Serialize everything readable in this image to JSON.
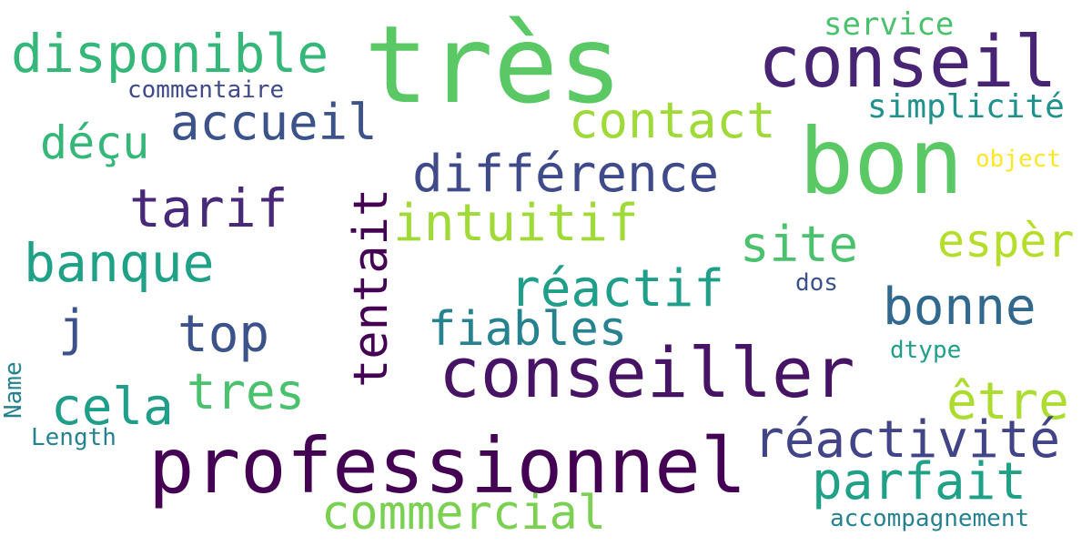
{
  "colors": {
    "background": "#ffffff",
    "viridis": [
      "#440154",
      "#482878",
      "#3e4a89",
      "#31688e",
      "#26828e",
      "#1f9e89",
      "#35b779",
      "#6ece58",
      "#b5de2b",
      "#fde725"
    ]
  },
  "words": [
    {
      "text": "très",
      "color": "#5ac864",
      "orientation": "horizontal"
    },
    {
      "text": "conseil",
      "color": "#482475",
      "orientation": "horizontal"
    },
    {
      "text": "bon",
      "color": "#5ac864",
      "orientation": "horizontal"
    },
    {
      "text": "disponible",
      "color": "#35b779",
      "orientation": "horizontal"
    },
    {
      "text": "service",
      "color": "#4ac16d",
      "orientation": "horizontal"
    },
    {
      "text": "commentaire",
      "color": "#3e4a89",
      "orientation": "horizontal"
    },
    {
      "text": "accueil",
      "color": "#3b528b",
      "orientation": "horizontal"
    },
    {
      "text": "contact",
      "color": "#a0da39",
      "orientation": "horizontal"
    },
    {
      "text": "simplicité",
      "color": "#21918c",
      "orientation": "horizontal"
    },
    {
      "text": "déçu",
      "color": "#35b779",
      "orientation": "horizontal"
    },
    {
      "text": "différence",
      "color": "#3e4a89",
      "orientation": "horizontal"
    },
    {
      "text": "object",
      "color": "#fde725",
      "orientation": "horizontal"
    },
    {
      "text": "tarif",
      "color": "#482878",
      "orientation": "horizontal"
    },
    {
      "text": "tentait",
      "color": "#440154",
      "orientation": "vertical"
    },
    {
      "text": "intuitif",
      "color": "#a0da39",
      "orientation": "horizontal"
    },
    {
      "text": "site",
      "color": "#4ac16d",
      "orientation": "horizontal"
    },
    {
      "text": "espèr",
      "color": "#b5de2b",
      "orientation": "horizontal"
    },
    {
      "text": "banque",
      "color": "#1fa187",
      "orientation": "horizontal"
    },
    {
      "text": "réactif",
      "color": "#1f9e89",
      "orientation": "horizontal"
    },
    {
      "text": "dos",
      "color": "#3b528b",
      "orientation": "horizontal"
    },
    {
      "text": "bonne",
      "color": "#31688e",
      "orientation": "horizontal"
    },
    {
      "text": "j",
      "color": "#3b528b",
      "orientation": "horizontal"
    },
    {
      "text": "top",
      "color": "#3b528b",
      "orientation": "horizontal"
    },
    {
      "text": "fiables",
      "color": "#26828e",
      "orientation": "horizontal"
    },
    {
      "text": "conseiller",
      "color": "#471365",
      "orientation": "horizontal"
    },
    {
      "text": "dtype",
      "color": "#1f9e89",
      "orientation": "horizontal"
    },
    {
      "text": "Name",
      "color": "#26828e",
      "orientation": "vertical"
    },
    {
      "text": "cela",
      "color": "#1f9e89",
      "orientation": "horizontal"
    },
    {
      "text": "tres",
      "color": "#4ac16d",
      "orientation": "horizontal"
    },
    {
      "text": "être",
      "color": "#addc30",
      "orientation": "horizontal"
    },
    {
      "text": "réactivité",
      "color": "#414487",
      "orientation": "horizontal"
    },
    {
      "text": "Length",
      "color": "#26828e",
      "orientation": "horizontal"
    },
    {
      "text": "professionnel",
      "color": "#440154",
      "orientation": "horizontal"
    },
    {
      "text": "parfait",
      "color": "#1fa187",
      "orientation": "horizontal"
    },
    {
      "text": "commercial",
      "color": "#7ad151",
      "orientation": "horizontal"
    },
    {
      "text": "accompagnement",
      "color": "#26828e",
      "orientation": "horizontal"
    }
  ]
}
